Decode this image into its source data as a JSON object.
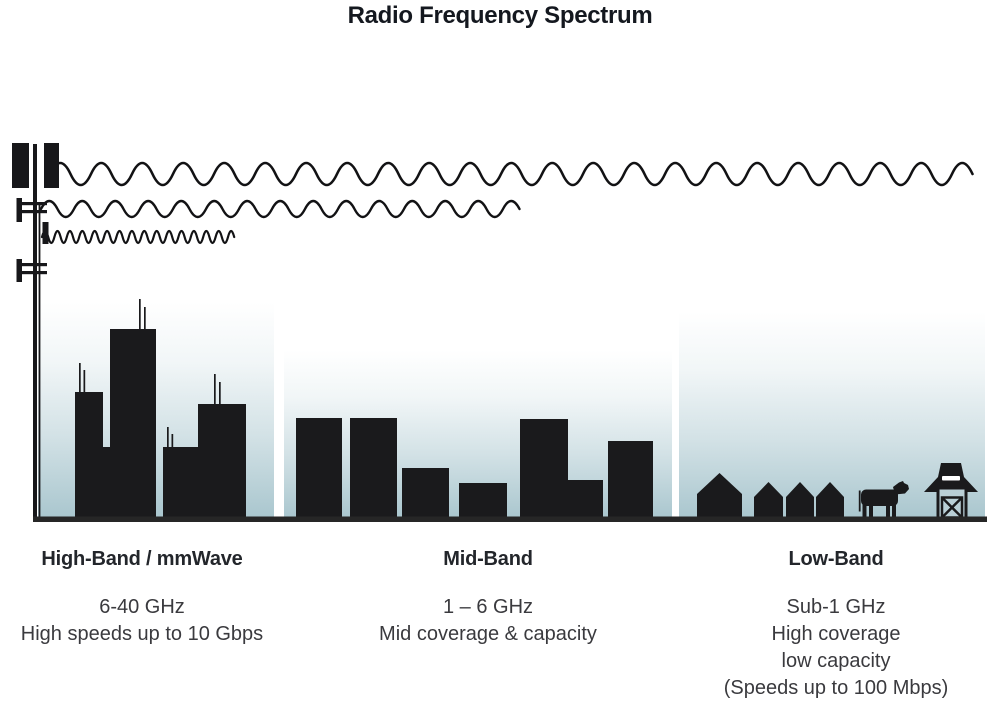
{
  "title": "Radio Frequency Spectrum",
  "bands": [
    {
      "id": "high",
      "heading": "High-Band / mmWave",
      "lines": [
        "6-40 GHz",
        "High speeds up to 10 Gbps"
      ]
    },
    {
      "id": "mid",
      "heading": "Mid-Band",
      "lines": [
        "1 – 6 GHz",
        "Mid coverage & capacity"
      ]
    },
    {
      "id": "low",
      "heading": "Low-Band",
      "lines": [
        "Sub-1 GHz",
        "High coverage",
        "low capacity",
        "(Speeds up to 100 Mbps)"
      ]
    }
  ],
  "graphics": {
    "tower": "cell-tower-icon",
    "waves": [
      {
        "name": "low-band-wave-icon",
        "description": "long wavelength, longest reach"
      },
      {
        "name": "mid-band-wave-icon",
        "description": "medium wavelength, medium reach"
      },
      {
        "name": "high-band-wave-icon",
        "description": "short wavelength, shortest reach"
      }
    ],
    "scenes": [
      "city-skyline",
      "suburban-buildings",
      "rural-farm"
    ],
    "farm_items": [
      "house-icon",
      "cow-icon",
      "barn-icon"
    ]
  },
  "colors": {
    "silhouette": "#1a1a1c",
    "sky_gradient_bottom": "#a9c6ce",
    "baseline": "#262626",
    "heading_text": "#23262b",
    "body_text": "#3a3a3e"
  }
}
